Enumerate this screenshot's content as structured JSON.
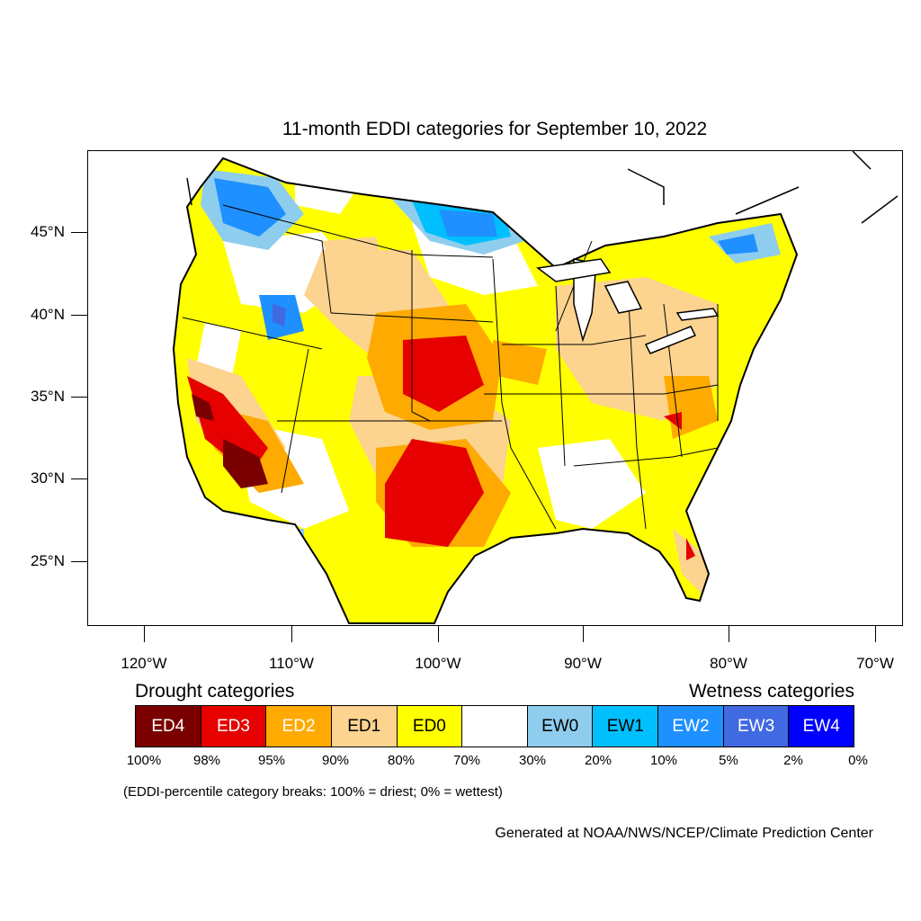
{
  "title": "11-month EDDI categories for September 10, 2022",
  "map": {
    "lat_ticks": [
      "45°N",
      "40°N",
      "35°N",
      "30°N",
      "25°N"
    ],
    "lon_ticks": [
      "120°W",
      "110°W",
      "100°W",
      "90°W",
      "80°W",
      "70°W"
    ]
  },
  "legend": {
    "drought_heading": "Drought categories",
    "wetness_heading": "Wetness categories",
    "categories": [
      {
        "label": "ED4",
        "color": "#7a0000",
        "text_color": "#ffffff"
      },
      {
        "label": "ED3",
        "color": "#e60000",
        "text_color": "#ffffff"
      },
      {
        "label": "ED2",
        "color": "#ffaa00",
        "text_color": "#ffffff"
      },
      {
        "label": "ED1",
        "color": "#fcd38f",
        "text_color": "#000000"
      },
      {
        "label": "ED0",
        "color": "#ffff00",
        "text_color": "#000000"
      },
      {
        "label": "",
        "color": "#ffffff",
        "text_color": "#000000"
      },
      {
        "label": "EW0",
        "color": "#8fcdee",
        "text_color": "#000000"
      },
      {
        "label": "EW1",
        "color": "#00bfff",
        "text_color": "#000000"
      },
      {
        "label": "EW2",
        "color": "#1e90ff",
        "text_color": "#ffffff"
      },
      {
        "label": "EW3",
        "color": "#4169e1",
        "text_color": "#ffffff"
      },
      {
        "label": "EW4",
        "color": "#0000ff",
        "text_color": "#ffffff"
      }
    ],
    "breaks": [
      "100%",
      "98%",
      "95%",
      "90%",
      "80%",
      "70%",
      "30%",
      "20%",
      "10%",
      "5%",
      "2%",
      "0%"
    ]
  },
  "note": "(EDDI-percentile category breaks: 100% = driest; 0% = wettest)",
  "credit": "Generated at NOAA/NWS/NCEP/Climate Prediction Center"
}
